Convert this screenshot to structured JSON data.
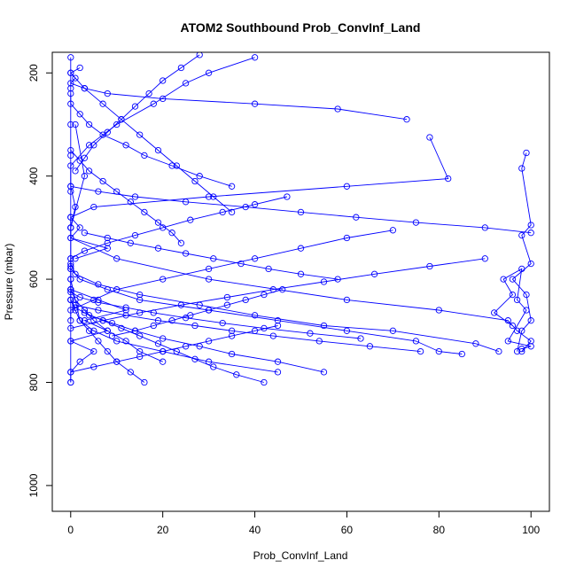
{
  "chart_data": {
    "type": "line",
    "title": "ATOM2 Southbound Prob_ConvInf_Land",
    "xlabel": "Prob_ConvInf_Land",
    "ylabel": "Pressure (mbar)",
    "xlim": [
      -4,
      104
    ],
    "ylim": [
      1050,
      160
    ],
    "y_reversed": true,
    "x_ticks": [
      0,
      20,
      40,
      60,
      80,
      100
    ],
    "x_tick_labels": [
      "0",
      "20",
      "40",
      "60",
      "80",
      "100"
    ],
    "y_ticks": [
      200,
      400,
      600,
      800,
      1000
    ],
    "y_tick_labels": [
      "200",
      "400",
      "600",
      "800",
      "1000"
    ],
    "grid": false,
    "legend": "none",
    "colors": {
      "series": "#0000ff",
      "axes": "#000000"
    },
    "marker": "open-circle",
    "series": [
      {
        "x": [
          0,
          0,
          2,
          5,
          0,
          8,
          3,
          12,
          6,
          0
        ],
        "y": [
          800,
          780,
          760,
          740,
          720,
          700,
          680,
          660,
          640,
          620
        ]
      },
      {
        "x": [
          45,
          30,
          20,
          10,
          5,
          2,
          0,
          0,
          3,
          1
        ],
        "y": [
          780,
          760,
          740,
          720,
          700,
          680,
          600,
          500,
          400,
          300
        ]
      },
      {
        "x": [
          98,
          100,
          97,
          95,
          80,
          60,
          30,
          10,
          0,
          0
        ],
        "y": [
          740,
          720,
          700,
          680,
          660,
          640,
          600,
          560,
          520,
          480
        ]
      },
      {
        "x": [
          99,
          98,
          100,
          98,
          100,
          96,
          99,
          100,
          98,
          97
        ],
        "y": [
          355,
          385,
          495,
          515,
          570,
          600,
          630,
          680,
          700,
          740
        ]
      },
      {
        "x": [
          78,
          82,
          60,
          30,
          5,
          0,
          2,
          0,
          8,
          1
        ],
        "y": [
          325,
          405,
          420,
          440,
          460,
          480,
          500,
          520,
          540,
          560
        ]
      },
      {
        "x": [
          73,
          58,
          40,
          20,
          8,
          3,
          0,
          1,
          0,
          2
        ],
        "y": [
          290,
          270,
          260,
          250,
          240,
          230,
          220,
          210,
          200,
          190
        ]
      },
      {
        "x": [
          40,
          30,
          25,
          18,
          10,
          4,
          0,
          0,
          1,
          0
        ],
        "y": [
          170,
          200,
          220,
          260,
          300,
          340,
          380,
          420,
          460,
          500
        ]
      },
      {
        "x": [
          0,
          5,
          10,
          15,
          20,
          25,
          30,
          35,
          40,
          45
        ],
        "y": [
          780,
          770,
          760,
          750,
          740,
          730,
          720,
          710,
          700,
          690
        ]
      },
      {
        "x": [
          70,
          60,
          50,
          40,
          30,
          20,
          10,
          5,
          0,
          0
        ],
        "y": [
          505,
          520,
          540,
          560,
          580,
          600,
          620,
          640,
          660,
          680
        ]
      },
      {
        "x": [
          85,
          80,
          75,
          60,
          45,
          30,
          15,
          8,
          2,
          0
        ],
        "y": [
          745,
          740,
          720,
          700,
          680,
          660,
          640,
          620,
          600,
          580
        ]
      },
      {
        "x": [
          93,
          88,
          70,
          55,
          40,
          28,
          15,
          6,
          1,
          0
        ],
        "y": [
          740,
          725,
          700,
          690,
          670,
          650,
          630,
          610,
          590,
          570
        ]
      },
      {
        "x": [
          20,
          15,
          12,
          8,
          5,
          3,
          1,
          0,
          0,
          0
        ],
        "y": [
          760,
          740,
          720,
          700,
          680,
          660,
          640,
          620,
          600,
          580
        ]
      },
      {
        "x": [
          55,
          45,
          35,
          28,
          20,
          14,
          9,
          4,
          1,
          0
        ],
        "y": [
          780,
          760,
          745,
          730,
          715,
          700,
          685,
          670,
          655,
          640
        ]
      },
      {
        "x": [
          100,
          90,
          75,
          62,
          50,
          38,
          25,
          14,
          6,
          0
        ],
        "y": [
          510,
          500,
          490,
          480,
          470,
          460,
          450,
          440,
          430,
          420
        ]
      },
      {
        "x": [
          35,
          28,
          22,
          16,
          12,
          7,
          4,
          2,
          0,
          0
        ],
        "y": [
          420,
          400,
          380,
          360,
          340,
          320,
          300,
          280,
          260,
          240
        ]
      },
      {
        "x": [
          0,
          3,
          7,
          11,
          15,
          19,
          23,
          27,
          31,
          35
        ],
        "y": [
          200,
          230,
          260,
          290,
          320,
          350,
          380,
          410,
          440,
          470
        ]
      },
      {
        "x": [
          47,
          40,
          33,
          26,
          20,
          14,
          8,
          3,
          0,
          0
        ],
        "y": [
          440,
          455,
          470,
          485,
          500,
          515,
          530,
          545,
          560,
          575
        ]
      },
      {
        "x": [
          63,
          52,
          42,
          33,
          25,
          18,
          12,
          6,
          2,
          0
        ],
        "y": [
          715,
          705,
          695,
          685,
          675,
          665,
          655,
          645,
          635,
          625
        ]
      },
      {
        "x": [
          90,
          78,
          66,
          55,
          44,
          34,
          24,
          15,
          7,
          0
        ],
        "y": [
          560,
          575,
          590,
          605,
          620,
          635,
          650,
          665,
          680,
          695
        ]
      },
      {
        "x": [
          96,
          92,
          96,
          94,
          98,
          97,
          99,
          95,
          100,
          98
        ],
        "y": [
          690,
          665,
          630,
          600,
          580,
          640,
          660,
          720,
          730,
          735
        ]
      },
      {
        "x": [
          28,
          24,
          20,
          17,
          14,
          11,
          8,
          5,
          3,
          1
        ],
        "y": [
          165,
          190,
          215,
          240,
          265,
          290,
          315,
          340,
          365,
          390
        ]
      },
      {
        "x": [
          42,
          36,
          31,
          27,
          23,
          19,
          15,
          11,
          7,
          3
        ],
        "y": [
          800,
          785,
          770,
          755,
          740,
          725,
          710,
          695,
          680,
          665
        ]
      },
      {
        "x": [
          16,
          13,
          10,
          8,
          6,
          4,
          2,
          1,
          0,
          0
        ],
        "y": [
          800,
          780,
          760,
          740,
          720,
          700,
          680,
          660,
          640,
          620
        ]
      },
      {
        "x": [
          76,
          65,
          54,
          44,
          35,
          27,
          19,
          12,
          6,
          1
        ],
        "y": [
          740,
          730,
          720,
          710,
          700,
          690,
          680,
          670,
          660,
          650
        ]
      },
      {
        "x": [
          58,
          50,
          43,
          37,
          31,
          25,
          19,
          13,
          8,
          3
        ],
        "y": [
          600,
          590,
          580,
          570,
          560,
          550,
          540,
          530,
          520,
          510
        ]
      },
      {
        "x": [
          24,
          22,
          19,
          16,
          13,
          10,
          7,
          4,
          2,
          0
        ],
        "y": [
          530,
          510,
          490,
          470,
          450,
          430,
          410,
          390,
          370,
          350
        ]
      },
      {
        "x": [
          9,
          14,
          18,
          22,
          26,
          30,
          34,
          38,
          42,
          46
        ],
        "y": [
          710,
          700,
          690,
          680,
          670,
          660,
          650,
          640,
          630,
          620
        ]
      },
      {
        "x": [
          0,
          0,
          0,
          0,
          0,
          0,
          0,
          0,
          0,
          0
        ],
        "y": [
          170,
          230,
          300,
          360,
          430,
          500,
          560,
          640,
          720,
          800
        ]
      }
    ]
  }
}
